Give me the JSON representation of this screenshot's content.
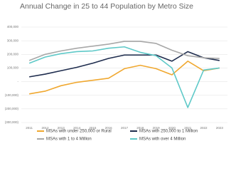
{
  "chart_data": {
    "type": "line",
    "title": "Annual Change in 25 to 44 Population by Metro Size",
    "categories": [
      "2011",
      "2012",
      "2013",
      "2014",
      "2015",
      "2016",
      "2017",
      "2018",
      "2019",
      "2020",
      "2021",
      "2022",
      "2023"
    ],
    "series": [
      {
        "name": "MSAs with under 250,000 or Rural",
        "color": "#f0a830",
        "values": [
          -90000,
          -70000,
          -30000,
          -5000,
          10000,
          25000,
          95000,
          120000,
          95000,
          50000,
          150000,
          80000,
          100000
        ]
      },
      {
        "name": "MSAs with 250,000 to 1 Million",
        "color": "#1f2d4e",
        "values": [
          35000,
          55000,
          80000,
          105000,
          135000,
          170000,
          195000,
          195000,
          195000,
          150000,
          220000,
          175000,
          155000
        ]
      },
      {
        "name": "MSAs with 1 to 4 Million",
        "color": "#a8a8a8",
        "values": [
          155000,
          200000,
          225000,
          245000,
          260000,
          275000,
          295000,
          295000,
          280000,
          230000,
          190000,
          175000,
          170000
        ]
      },
      {
        "name": "MSAs with over 4 Million",
        "color": "#5fc9c8",
        "values": [
          135000,
          180000,
          205000,
          220000,
          225000,
          245000,
          255000,
          215000,
          190000,
          100000,
          -190000,
          85000,
          100000
        ]
      }
    ],
    "ylim": [
      -300000,
      400000
    ],
    "yticks": [
      {
        "value": 400000,
        "label": "400,000"
      },
      {
        "value": 300000,
        "label": "300,000"
      },
      {
        "value": 200000,
        "label": "200,000"
      },
      {
        "value": 100000,
        "label": "100,000"
      },
      {
        "value": 0,
        "label": "-"
      },
      {
        "value": -100000,
        "label": "(100,000)"
      },
      {
        "value": -200000,
        "label": "(200,000)"
      },
      {
        "value": -300000,
        "label": "(300,000)"
      }
    ],
    "grid": true
  }
}
